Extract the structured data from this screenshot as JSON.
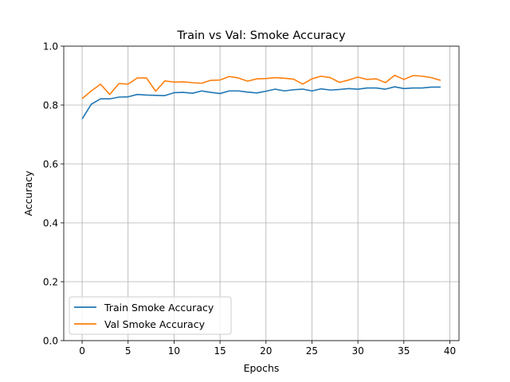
{
  "chart_data": {
    "type": "line",
    "title": "Train vs Val: Smoke Accuracy",
    "xlabel": "Epochs",
    "ylabel": "Accuracy",
    "xlim": [
      -2,
      41
    ],
    "ylim": [
      0.0,
      1.0
    ],
    "xticks": [
      0,
      5,
      10,
      15,
      20,
      25,
      30,
      35,
      40
    ],
    "yticks": [
      0.0,
      0.2,
      0.4,
      0.6,
      0.8,
      1.0
    ],
    "xtick_labels": [
      "0",
      "5",
      "10",
      "15",
      "20",
      "25",
      "30",
      "35",
      "40"
    ],
    "ytick_labels": [
      "0.0",
      "0.2",
      "0.4",
      "0.6",
      "0.8",
      "1.0"
    ],
    "grid": true,
    "legend_position": "lower-left",
    "x": [
      0,
      1,
      2,
      3,
      4,
      5,
      6,
      7,
      8,
      9,
      10,
      11,
      12,
      13,
      14,
      15,
      16,
      17,
      18,
      19,
      20,
      21,
      22,
      23,
      24,
      25,
      26,
      27,
      28,
      29,
      30,
      31,
      32,
      33,
      34,
      35,
      36,
      37,
      38,
      39
    ],
    "series": [
      {
        "name": "Train Smoke Accuracy",
        "color": "#1f77b4",
        "values": [
          0.753,
          0.803,
          0.821,
          0.821,
          0.827,
          0.828,
          0.836,
          0.834,
          0.833,
          0.832,
          0.842,
          0.843,
          0.84,
          0.848,
          0.843,
          0.839,
          0.848,
          0.848,
          0.844,
          0.841,
          0.847,
          0.854,
          0.848,
          0.852,
          0.854,
          0.848,
          0.855,
          0.851,
          0.853,
          0.856,
          0.854,
          0.858,
          0.858,
          0.854,
          0.862,
          0.856,
          0.858,
          0.858,
          0.861,
          0.861
        ]
      },
      {
        "name": "Val Smoke Accuracy",
        "color": "#ff7f0e",
        "values": [
          0.822,
          0.848,
          0.871,
          0.836,
          0.873,
          0.871,
          0.892,
          0.892,
          0.847,
          0.882,
          0.878,
          0.879,
          0.876,
          0.874,
          0.884,
          0.885,
          0.897,
          0.892,
          0.881,
          0.889,
          0.89,
          0.893,
          0.891,
          0.888,
          0.871,
          0.889,
          0.898,
          0.893,
          0.877,
          0.885,
          0.895,
          0.887,
          0.889,
          0.876,
          0.901,
          0.887,
          0.9,
          0.898,
          0.893,
          0.884
        ]
      }
    ]
  }
}
